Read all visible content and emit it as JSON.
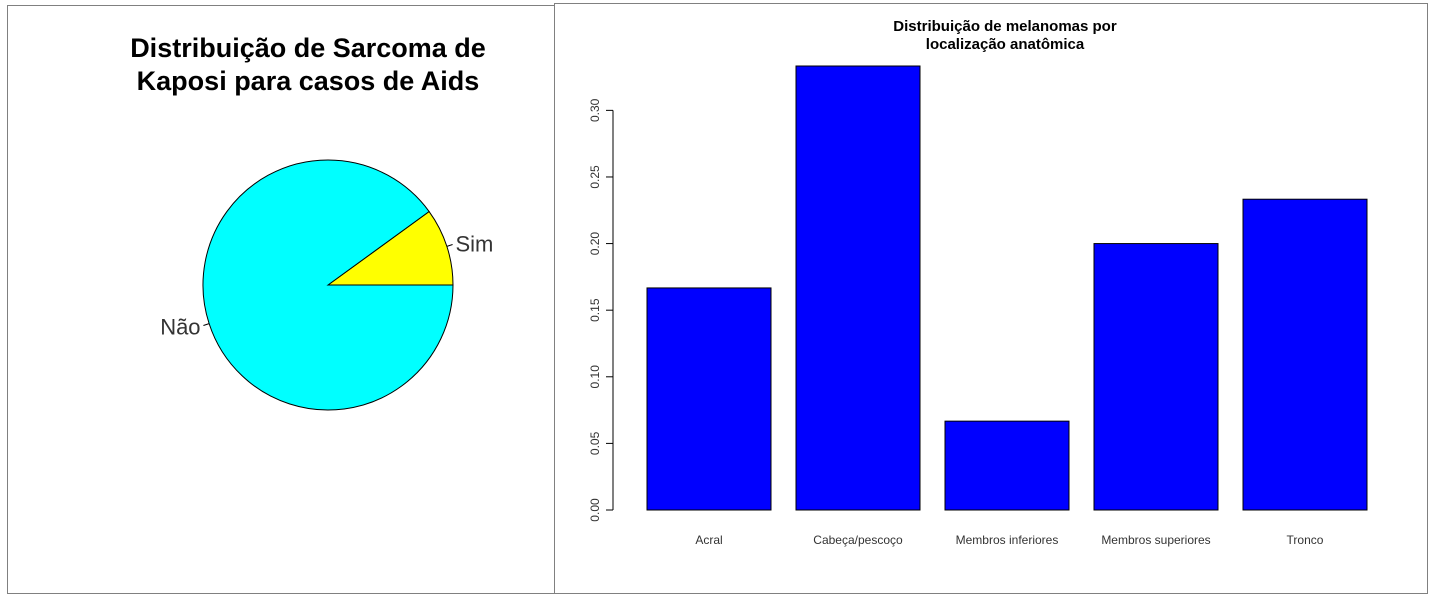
{
  "chart_data": [
    {
      "type": "pie",
      "title": "Distribuição de Sarcoma de\nKaposi para casos de Aids",
      "labels": [
        "Sim",
        "Não"
      ],
      "values": [
        0.1,
        0.9
      ],
      "colors": [
        "#ffff00",
        "#00ffff"
      ]
    },
    {
      "type": "bar",
      "title": "Distribuição de melanomas por\nlocalização anatômica",
      "categories": [
        "Acral",
        "Cabeça/pescoço",
        "Membros inferiores",
        "Membros superiores",
        "Tronco"
      ],
      "values": [
        0.1667,
        0.3333,
        0.0667,
        0.2,
        0.2333
      ],
      "yticks": [
        "0.00",
        "0.05",
        "0.10",
        "0.15",
        "0.20",
        "0.25",
        "0.30"
      ],
      "ylim": [
        0,
        0.3333
      ],
      "color": "#0000ff",
      "xlabel": "",
      "ylabel": ""
    }
  ]
}
